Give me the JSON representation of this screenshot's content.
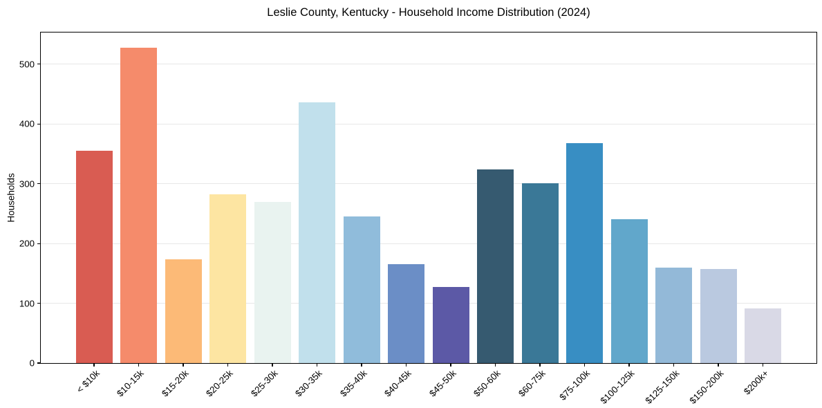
{
  "chart_data": {
    "type": "bar",
    "title": "Leslie County, Kentucky - Household Income Distribution (2024)",
    "xlabel": "",
    "ylabel": "Households",
    "categories": [
      "< $10k",
      "$10-15k",
      "$15-20k",
      "$20-25k",
      "$25-30k",
      "$30-35k",
      "$35-40k",
      "$40-45k",
      "$45-50k",
      "$50-60k",
      "$60-75k",
      "$75-100k",
      "$100-125k",
      "$125-150k",
      "$150-200k",
      "$200k+"
    ],
    "values": [
      355,
      528,
      173,
      282,
      270,
      436,
      245,
      165,
      127,
      324,
      301,
      368,
      241,
      160,
      157,
      91
    ],
    "bar_colors": [
      "#d95c52",
      "#f58b6b",
      "#fcba77",
      "#fde5a2",
      "#e9f3f0",
      "#c1e0ec",
      "#90bcdb",
      "#6b8ec6",
      "#5c59a6",
      "#365a70",
      "#3a7897",
      "#388ec3",
      "#61a7cb",
      "#93b9d8",
      "#bac9e0",
      "#d9d9e6"
    ],
    "yticks": [
      0,
      100,
      200,
      300,
      400,
      500
    ],
    "ylim": [
      0,
      553
    ],
    "grid": "horizontal",
    "gridline_color": "#e7e7e7",
    "axis_color": "#000000",
    "background_color": "#ffffff",
    "legend": "none",
    "x_tick_rotation_deg": 45
  }
}
